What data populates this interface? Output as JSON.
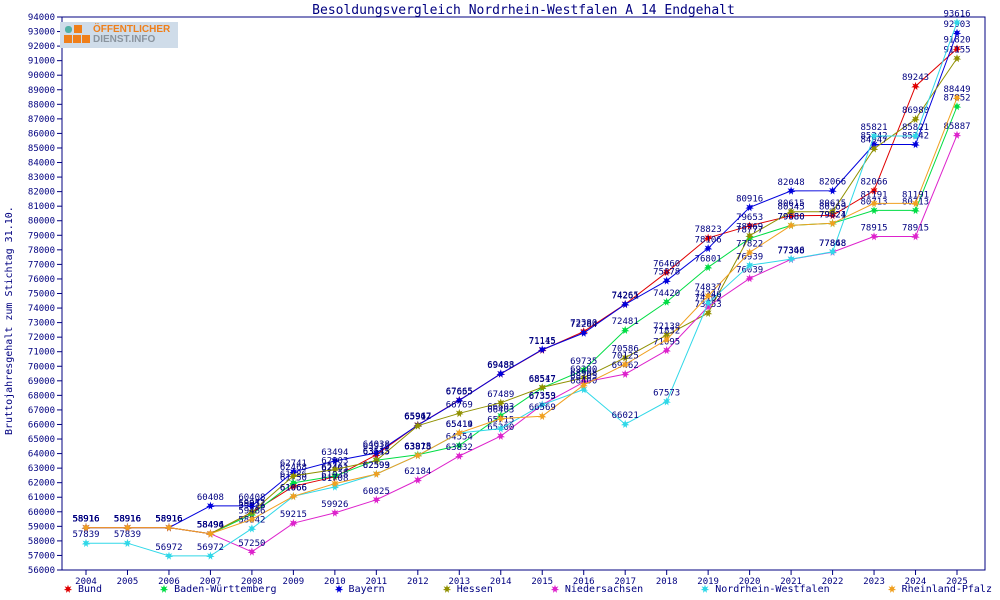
{
  "window": {
    "title": "Besoldungsvergleich Nordrhein-Westfalen A 14 Endgehalt"
  },
  "logo": {
    "line1": "ÖFFENTLICHER",
    "line2": "DIENST.INFO"
  },
  "chart_data": {
    "type": "line",
    "title": "Besoldungsvergleich Nordrhein-Westfalen A 14 Endgehalt",
    "xlabel": "",
    "ylabel": "Bruttojahresgehalt zum Stichtag 31.10.",
    "ylim": [
      56000,
      94000
    ],
    "ytick_step": 1000,
    "grid": false,
    "point_labels_visible": true,
    "label_color": "#000080",
    "axis_color": "#000080",
    "legend_position": "bottom",
    "x": [
      2004,
      2005,
      2006,
      2007,
      2008,
      2009,
      2010,
      2011,
      2012,
      2013,
      2014,
      2015,
      2016,
      2017,
      2018,
      2019,
      2020,
      2021,
      2022,
      2023,
      2024,
      2025
    ],
    "series": [
      {
        "name": "Bund",
        "color": "#e00000",
        "values": [
          58916,
          58916,
          58916,
          58496,
          59951,
          61750,
          62403,
          63915,
          65962,
          67665,
          69483,
          71115,
          72380,
          74265,
          76460,
          78823,
          79653,
          80345,
          80369,
          82066,
          89243,
          91820
        ]
      },
      {
        "name": "Baden-Württemberg",
        "color": "#00dd44",
        "values": [
          58916,
          58916,
          58916,
          58494,
          59826,
          61986,
          62461,
          63545,
          63915,
          64554,
          66603,
          68517,
          69735,
          72481,
          74420,
          76801,
          78777,
          79680,
          79821,
          80713,
          80713,
          87852
        ]
      },
      {
        "name": "Bayern",
        "color": "#0000dd",
        "values": [
          58916,
          58916,
          58916,
          60408,
          60408,
          62741,
          63494,
          64038,
          65947,
          67655,
          69488,
          71145,
          72284,
          74261,
          75878,
          78106,
          80916,
          82048,
          82066,
          85242,
          85242,
          92903
        ]
      },
      {
        "name": "Hessen",
        "color": "#909000",
        "values": [
          58916,
          58916,
          58916,
          58494,
          59972,
          62468,
          62903,
          63515,
          65917,
          66769,
          67489,
          68547,
          69200,
          70586,
          72138,
          73653,
          78969,
          80615,
          80615,
          84947,
          86980,
          91155
        ]
      },
      {
        "name": "Niedersachsen",
        "color": "#dd22cc",
        "values": [
          58916,
          58916,
          58916,
          58494,
          57250,
          59215,
          59926,
          60825,
          62184,
          63832,
          65200,
          67359,
          68908,
          69462,
          71095,
          74102,
          76039,
          77348,
          77848,
          78915,
          78915,
          85887
        ]
      },
      {
        "name": "Nordrhein-Westfalen",
        "color": "#30d8e8",
        "values": [
          57839,
          57839,
          56972,
          56972,
          58842,
          61066,
          61708,
          62599,
          63878,
          65414,
          65715,
          67353,
          68400,
          66021,
          67573,
          74346,
          76939,
          77366,
          77868,
          85821,
          85821,
          93616
        ]
      },
      {
        "name": "Rheinland-Pfalz",
        "color": "#f0a020",
        "values": [
          58916,
          58916,
          58916,
          58494,
          59486,
          61066,
          61938,
          62593,
          63878,
          65419,
          66403,
          66569,
          68705,
          70125,
          71832,
          74837,
          77822,
          79680,
          79824,
          81191,
          81191,
          88449
        ]
      }
    ]
  }
}
